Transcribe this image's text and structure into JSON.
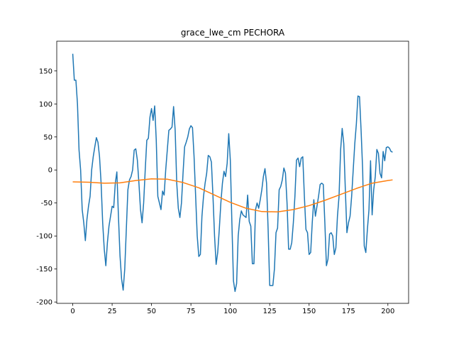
{
  "chart_data": {
    "type": "line",
    "title": "grace_lwe_cm PECHORA",
    "xlim": [
      -10.15,
      213.15
    ],
    "xticks": [
      0,
      25,
      50,
      75,
      100,
      125,
      150,
      175,
      200
    ],
    "ylim": [
      -202,
      195
    ],
    "yticks": [
      -200,
      -150,
      -100,
      -50,
      0,
      50,
      100,
      150
    ],
    "grid": false,
    "series": [
      {
        "color": "#1f77b4",
        "x": [
          0,
          1,
          2,
          3,
          4,
          5,
          6,
          7,
          8,
          9,
          10,
          11,
          12,
          13,
          14,
          15,
          16,
          17,
          18,
          19,
          20,
          21,
          22,
          23,
          24,
          25,
          26,
          27,
          28,
          29,
          30,
          31,
          32,
          33,
          34,
          35,
          36,
          37,
          38,
          39,
          40,
          41,
          42,
          43,
          44,
          45,
          46,
          47,
          48,
          49,
          50,
          51,
          52,
          53,
          54,
          55,
          56,
          57,
          58,
          59,
          60,
          61,
          62,
          63,
          64,
          65,
          66,
          67,
          68,
          69,
          70,
          71,
          72,
          73,
          74,
          75,
          76,
          77,
          78,
          79,
          80,
          81,
          82,
          83,
          84,
          85,
          86,
          87,
          88,
          89,
          90,
          91,
          92,
          93,
          94,
          95,
          96,
          97,
          98,
          99,
          100,
          101,
          102,
          103,
          104,
          105,
          106,
          107,
          108,
          109,
          110,
          111,
          112,
          113,
          114,
          115,
          116,
          117,
          118,
          119,
          120,
          121,
          122,
          123,
          124,
          125,
          126,
          127,
          128,
          129,
          130,
          131,
          132,
          133,
          134,
          135,
          136,
          137,
          138,
          139,
          140,
          141,
          142,
          143,
          144,
          145,
          146,
          147,
          148,
          149,
          150,
          151,
          152,
          153,
          154,
          155,
          156,
          157,
          158,
          159,
          160,
          161,
          162,
          163,
          164,
          165,
          166,
          167,
          168,
          169,
          170,
          171,
          172,
          173,
          174,
          175,
          176,
          177,
          178,
          179,
          180,
          181,
          182,
          183,
          184,
          185,
          186,
          187,
          188,
          189,
          190,
          191,
          192,
          193,
          194,
          195,
          196,
          197,
          198,
          199,
          200,
          201,
          202,
          203
        ],
        "values": [
          176,
          136,
          136,
          100,
          30,
          0,
          -60,
          -80,
          -107,
          -75,
          -55,
          -40,
          0,
          20,
          35,
          49,
          42,
          20,
          -20,
          -80,
          -120,
          -145,
          -110,
          -85,
          -70,
          -55,
          -57,
          -20,
          -3,
          -70,
          -130,
          -165,
          -182,
          -150,
          -90,
          -30,
          -15,
          -10,
          0,
          30,
          32,
          15,
          -20,
          -60,
          -80,
          -50,
          0,
          45,
          48,
          80,
          93,
          75,
          97,
          45,
          -40,
          -50,
          -60,
          -32,
          -38,
          0,
          30,
          60,
          62,
          65,
          96,
          60,
          -20,
          -58,
          -72,
          -50,
          -5,
          35,
          42,
          50,
          62,
          67,
          64,
          20,
          -40,
          -100,
          -131,
          -128,
          -70,
          -40,
          -20,
          -5,
          22,
          20,
          12,
          -40,
          -100,
          -143,
          -125,
          -90,
          -50,
          -20,
          -2,
          -10,
          10,
          55,
          15,
          -80,
          -168,
          -184,
          -172,
          -100,
          -75,
          -62,
          -68,
          -70,
          -72,
          -38,
          -78,
          -85,
          -142,
          -142,
          -60,
          -50,
          -58,
          -45,
          -30,
          -10,
          2,
          -20,
          -90,
          -175,
          -175,
          -175,
          -150,
          -95,
          -88,
          -30,
          -25,
          -15,
          3,
          -5,
          -50,
          -120,
          -120,
          -110,
          -80,
          -40,
          15,
          18,
          5,
          18,
          20,
          -40,
          -90,
          -95,
          -128,
          -125,
          -80,
          -45,
          -70,
          -55,
          -40,
          -22,
          -20,
          -22,
          -80,
          -145,
          -135,
          -97,
          -95,
          -100,
          -128,
          -118,
          -70,
          -40,
          30,
          63,
          40,
          -30,
          -95,
          -80,
          -70,
          -40,
          0,
          40,
          70,
          112,
          111,
          60,
          0,
          -115,
          -125,
          -90,
          -60,
          14,
          -68,
          -30,
          -10,
          31,
          25,
          -5,
          -12,
          28,
          14,
          34,
          35,
          33,
          28,
          27
        ]
      },
      {
        "color": "#ff7f0e",
        "x": [
          0,
          10,
          20,
          30,
          40,
          50,
          60,
          70,
          80,
          90,
          100,
          110,
          120,
          130,
          140,
          150,
          160,
          170,
          180,
          190,
          200,
          203
        ],
        "values": [
          -18,
          -18.5,
          -20,
          -19.5,
          -16,
          -13.5,
          -14,
          -19,
          -27,
          -38,
          -49,
          -58,
          -63,
          -63.5,
          -60,
          -54,
          -46,
          -37,
          -28,
          -20,
          -16,
          -15
        ]
      }
    ]
  }
}
